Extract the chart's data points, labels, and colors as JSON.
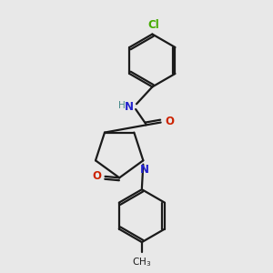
{
  "bg_color": "#e8e8e8",
  "bond_color": "#1a1a1a",
  "line_width": 1.6,
  "atom_colors": {
    "N": "#2222cc",
    "O": "#cc2200",
    "Cl": "#44aa00",
    "H": "#448888"
  },
  "font_size_atom": 8.5,
  "font_size_cl": 8.5,
  "font_size_methyl": 7.5
}
